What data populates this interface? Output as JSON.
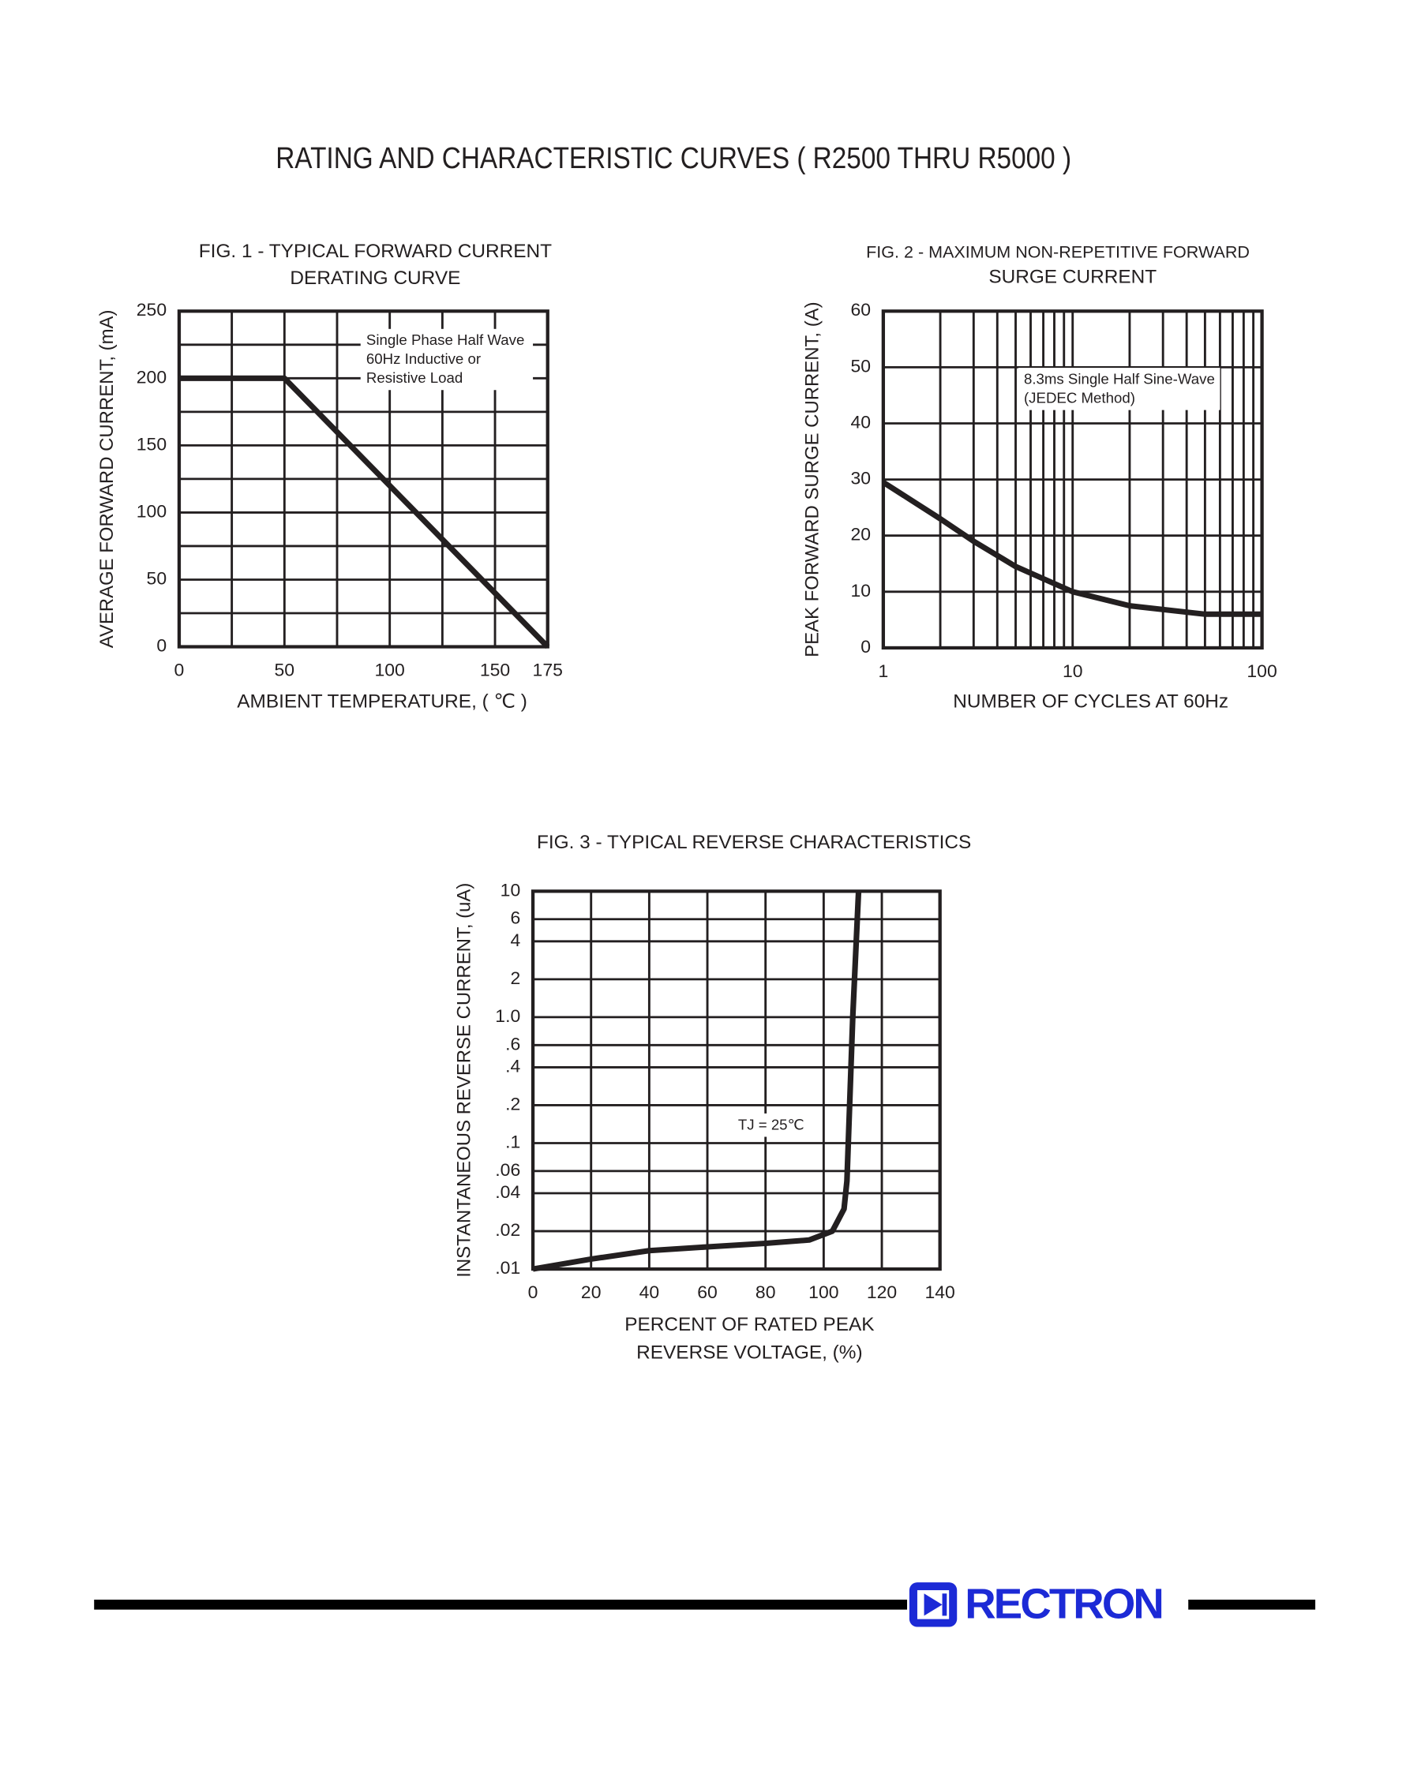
{
  "header": {
    "title": "RATING AND CHARACTERISTIC CURVES ( R2500 THRU R5000 )"
  },
  "footer": {
    "logo": "RECTRON"
  },
  "chart_data": [
    {
      "type": "line",
      "title": [
        "FIG. 1 - TYPICAL FORWARD CURRENT",
        "DERATING CURVE"
      ],
      "x_label": [
        "AMBIENT TEMPERATURE, ( ℃ )"
      ],
      "y_label": "AVERAGE FORWARD CURRENT, (mA)",
      "x": [
        0,
        50,
        175
      ],
      "values": [
        200,
        200,
        0
      ],
      "color": "#231f20",
      "xlim": [
        0,
        175
      ],
      "xticks": [
        0,
        50,
        100,
        150,
        175
      ],
      "minor_xticks": [
        25,
        75,
        125
      ],
      "ylim": [
        0,
        250
      ],
      "yticks": [
        0,
        50,
        100,
        150,
        200,
        250
      ],
      "minor_yticks": [
        25,
        75,
        125,
        175,
        225
      ],
      "grid": true,
      "annotation": [
        "Single Phase Half Wave",
        "60Hz Inductive or",
        "Resistive Load"
      ]
    },
    {
      "type": "line",
      "title": [
        "FIG. 2 - MAXIMUM NON-REPETITIVE FORWARD",
        "SURGE CURRENT"
      ],
      "x_label": [
        "NUMBER OF CYCLES AT 60Hz"
      ],
      "y_label": "PEAK FORWARD SURGE CURRENT, (A)",
      "x": [
        1,
        2,
        3,
        5,
        10,
        20,
        50,
        100
      ],
      "values": [
        29.5,
        23,
        19,
        14.5,
        10,
        7.5,
        6,
        6
      ],
      "color": "#231f20",
      "xlim": [
        1,
        100
      ],
      "xticks": [
        1,
        10,
        100
      ],
      "minor_xticks": [
        2,
        3,
        4,
        5,
        6,
        7,
        8,
        9,
        20,
        30,
        40,
        50,
        60,
        70,
        80,
        90
      ],
      "x_scale": "log",
      "ylim": [
        0,
        60
      ],
      "yticks": [
        0,
        10,
        20,
        30,
        40,
        50,
        60
      ],
      "grid": true,
      "annotation": [
        "8.3ms Single Half Sine-Wave",
        "(JEDEC Method)"
      ]
    },
    {
      "type": "line",
      "title": [
        "FIG. 3 - TYPICAL REVERSE CHARACTERISTICS"
      ],
      "x_label": [
        "PERCENT OF RATED PEAK",
        "REVERSE VOLTAGE, (%)"
      ],
      "y_label": "INSTANTANEOUS REVERSE CURRENT, (uA)",
      "x": [
        0,
        20,
        40,
        60,
        80,
        95,
        103,
        107,
        108,
        110,
        112
      ],
      "values": [
        0.01,
        0.012,
        0.014,
        0.015,
        0.016,
        0.017,
        0.02,
        0.03,
        0.05,
        1,
        10
      ],
      "color": "#231f20",
      "xlim": [
        0,
        140
      ],
      "xticks": [
        0,
        20,
        40,
        60,
        80,
        100,
        120,
        140
      ],
      "y_scale": "log",
      "ylim": [
        0.01,
        10
      ],
      "yticks": [
        {
          "value": 0.01,
          "label": ".01"
        },
        {
          "value": 0.02,
          "label": ".02"
        },
        {
          "value": 0.04,
          "label": ".04"
        },
        {
          "value": 0.06,
          "label": ".06"
        },
        {
          "value": 0.1,
          "label": ".1"
        },
        {
          "value": 0.2,
          "label": ".2"
        },
        {
          "value": 0.4,
          "label": ".4"
        },
        {
          "value": 0.6,
          "label": ".6"
        },
        {
          "value": 1,
          "label": "1.0"
        },
        2,
        4,
        6,
        10
      ],
      "grid": true,
      "annotation": [
        "TJ = 25℃"
      ]
    }
  ]
}
